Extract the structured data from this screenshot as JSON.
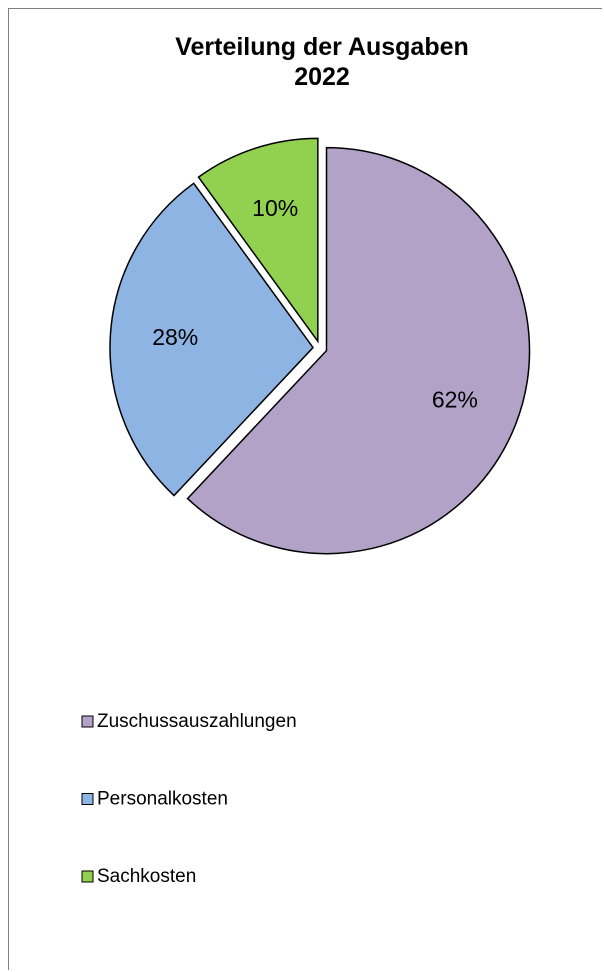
{
  "chart_data": {
    "type": "pie",
    "title": "Verteilung der Ausgaben 2022",
    "categories": [
      "Zuschussauszahlungen",
      "Personalkosten",
      "Sachkosten"
    ],
    "values": [
      62,
      28,
      10
    ],
    "value_labels": [
      "62%",
      "28%",
      "10%"
    ],
    "colors": [
      "#b3a2c7",
      "#8eb4e3",
      "#92d050"
    ],
    "legend": "bottom-left"
  }
}
